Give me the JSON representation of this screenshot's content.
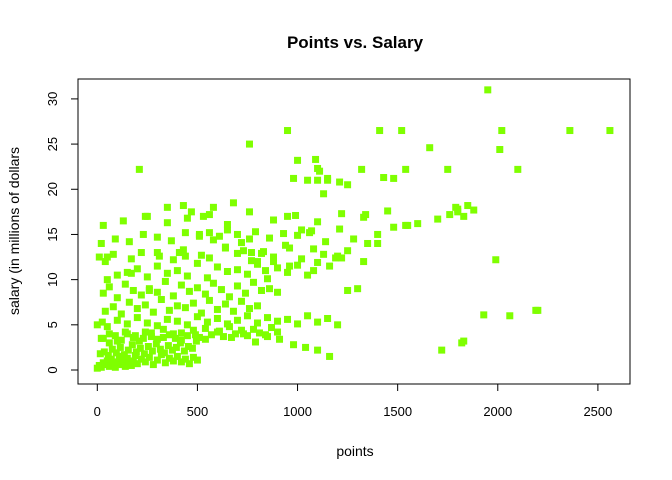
{
  "chart_data": {
    "type": "scatter",
    "title": "Points vs. Salary",
    "xlabel": "points",
    "ylabel": "salary (in millions of dollars",
    "xlim": [
      0,
      2560
    ],
    "ylim": [
      0,
      31
    ],
    "x_ticks": [
      0,
      500,
      1000,
      1500,
      2000,
      2500
    ],
    "y_ticks": [
      0,
      5,
      10,
      15,
      20,
      25,
      30
    ],
    "grid": false,
    "legend": "none",
    "marker": "square",
    "color": "#7FFF00",
    "series": [
      {
        "x": [
          0,
          10,
          20,
          30,
          40,
          50,
          60,
          70,
          80,
          90,
          100,
          110,
          120,
          130,
          140,
          150,
          160,
          170,
          180,
          190,
          200,
          220,
          240,
          260,
          280,
          300,
          320,
          340,
          360,
          380,
          400,
          420,
          440,
          460,
          480,
          500,
          15,
          35,
          55,
          75,
          95,
          115,
          135,
          155,
          175,
          195,
          215,
          235,
          255,
          275,
          295,
          315,
          335,
          355,
          375,
          395,
          415,
          435,
          455,
          475,
          495,
          30,
          60,
          90,
          120,
          150,
          180,
          210,
          240,
          270,
          300,
          330,
          360,
          390,
          420,
          450,
          480,
          510,
          540,
          570,
          600,
          630,
          660,
          690,
          720,
          750,
          780,
          810,
          840,
          870,
          900,
          0,
          25,
          50,
          100,
          150,
          200,
          250,
          300,
          350,
          400,
          450,
          500,
          550,
          600,
          650,
          700,
          750,
          800,
          850,
          900,
          950,
          1000,
          1050,
          1100,
          1150,
          1200,
          40,
          80,
          120,
          160,
          200,
          240,
          280,
          320,
          360,
          400,
          440,
          480,
          520,
          560,
          600,
          640,
          680,
          720,
          760,
          800,
          30,
          60,
          100,
          140,
          180,
          220,
          260,
          300,
          340,
          380,
          420,
          460,
          500,
          540,
          580,
          620,
          660,
          700,
          740,
          780,
          820,
          860,
          900,
          50,
          100,
          150,
          200,
          250,
          300,
          350,
          400,
          450,
          500,
          550,
          600,
          650,
          700,
          750,
          800,
          850,
          900,
          950,
          1000,
          1050,
          1100,
          10,
          40,
          80,
          170,
          220,
          310,
          380,
          430,
          520,
          560,
          640,
          700,
          770,
          830,
          880,
          940,
          1020,
          1080,
          1130,
          1200,
          1250,
          20,
          90,
          160,
          230,
          300,
          370,
          440,
          510,
          580,
          650,
          720,
          790,
          860,
          930,
          1000,
          1070,
          1140,
          1210,
          1280,
          1350,
          1400,
          30,
          130,
          250,
          350,
          450,
          560,
          650,
          760,
          880,
          990,
          1100,
          1220,
          1330,
          1450,
          760,
          950,
          1000,
          1090,
          1100,
          1150,
          1210,
          1250,
          1320,
          1340,
          1410,
          1480,
          1520,
          1540,
          1660,
          1760,
          1790,
          1800,
          1880,
          1950,
          2020,
          2100,
          2200,
          2360,
          2560,
          1330,
          1400,
          1430,
          1550,
          1600,
          1700,
          1750,
          1800,
          1830,
          1850,
          1990,
          2010,
          2060,
          1720,
          1820,
          1830,
          1930,
          2190,
          210,
          240,
          430,
          580,
          700,
          760,
          950,
          980,
          1050,
          1060,
          1100,
          1130,
          1160,
          1220,
          1250,
          1300,
          1480,
          1540,
          50,
          170,
          260,
          300,
          410,
          440,
          510,
          560,
          610,
          680,
          770,
          800,
          840,
          960,
          1020,
          1110,
          1150,
          350,
          470,
          530,
          640,
          730,
          820,
          880,
          960,
          1080,
          1190,
          20,
          60,
          100,
          140,
          190,
          230,
          270,
          330,
          380,
          420,
          490,
          540,
          610,
          670,
          730,
          790,
          850,
          910,
          980,
          1040,
          1100,
          1160
        ],
        "y": [
          0.2,
          0.5,
          0.3,
          0.8,
          0.6,
          1.0,
          0.4,
          1.2,
          0.7,
          0.3,
          0.9,
          1.5,
          0.6,
          1.1,
          0.4,
          1.3,
          0.8,
          0.5,
          1.0,
          1.6,
          0.7,
          1.2,
          0.9,
          1.4,
          0.6,
          1.1,
          1.7,
          0.8,
          1.3,
          1.0,
          1.5,
          0.9,
          1.2,
          0.7,
          1.4,
          1.1,
          1.8,
          2.0,
          1.6,
          2.3,
          1.9,
          2.5,
          1.7,
          2.2,
          2.8,
          2.0,
          2.4,
          1.8,
          2.6,
          2.1,
          2.9,
          2.3,
          1.9,
          2.7,
          2.2,
          2.5,
          3.0,
          2.1,
          2.6,
          2.4,
          3.2,
          3.5,
          3.0,
          3.8,
          3.3,
          4.0,
          3.6,
          3.2,
          4.2,
          3.7,
          3.4,
          4.5,
          3.9,
          3.5,
          4.1,
          3.8,
          4.4,
          3.6,
          4.6,
          3.9,
          4.2,
          3.7,
          4.8,
          4.0,
          4.4,
          3.8,
          4.5,
          4.1,
          3.9,
          4.7,
          4.2,
          5.0,
          5.3,
          4.8,
          5.5,
          5.1,
          5.8,
          5.2,
          4.9,
          5.6,
          5.4,
          5.0,
          5.9,
          5.3,
          5.7,
          5.1,
          5.5,
          6.0,
          5.2,
          5.8,
          5.4,
          5.6,
          5.1,
          6.0,
          5.3,
          5.7,
          5.0,
          6.5,
          7.0,
          6.2,
          7.5,
          6.8,
          7.2,
          6.4,
          7.8,
          6.6,
          7.1,
          6.9,
          7.4,
          6.3,
          7.7,
          6.7,
          7.3,
          6.5,
          7.6,
          6.8,
          7.1,
          8.5,
          9.2,
          8.0,
          9.5,
          8.8,
          8.3,
          9.0,
          8.6,
          9.8,
          8.2,
          9.4,
          8.7,
          9.1,
          8.4,
          9.6,
          8.9,
          8.1,
          9.3,
          8.5,
          9.7,
          8.8,
          9.0,
          8.6,
          10.0,
          10.5,
          10.8,
          11.2,
          10.3,
          11.5,
          10.7,
          11.0,
          10.4,
          11.8,
          10.2,
          11.4,
          10.9,
          11.1,
          10.6,
          11.7,
          10.1,
          11.3,
          10.8,
          11.6,
          10.5,
          11.9,
          12.5,
          12.0,
          12.8,
          12.3,
          13.0,
          12.6,
          12.2,
          13.3,
          12.7,
          12.4,
          13.6,
          12.9,
          12.1,
          13.1,
          12.5,
          13.8,
          12.3,
          13.4,
          12.8,
          12.6,
          13.2,
          14.0,
          14.5,
          14.2,
          15.0,
          14.7,
          14.3,
          15.2,
          14.8,
          14.4,
          15.5,
          14.1,
          15.3,
          14.6,
          15.1,
          14.9,
          15.4,
          14.2,
          15.6,
          14.5,
          14.0,
          15.0,
          16.0,
          16.5,
          17.0,
          16.3,
          16.8,
          17.2,
          16.1,
          17.5,
          16.6,
          17.1,
          16.4,
          17.3,
          16.9,
          17.6,
          25.0,
          26.5,
          23.2,
          23.3,
          22.3,
          21.2,
          20.8,
          20.5,
          22.2,
          17.2,
          26.5,
          21.2,
          26.5,
          22.2,
          24.6,
          17.2,
          18.0,
          17.8,
          17.7,
          31.0,
          26.5,
          22.2,
          6.6,
          26.5,
          26.5,
          12.0,
          14.0,
          21.3,
          16.0,
          16.2,
          16.7,
          22.2,
          17.5,
          17.0,
          18.2,
          12.2,
          24.4,
          6.0,
          2.2,
          3.0,
          3.2,
          6.1,
          6.6,
          22.2,
          17.0,
          18.2,
          18.0,
          15.0,
          14.5,
          17.0,
          21.2,
          21.0,
          15.2,
          21.0,
          19.5,
          11.5,
          12.4,
          8.8,
          9.0,
          15.8,
          16.0,
          12.5,
          10.7,
          8.8,
          13.0,
          13.0,
          12.6,
          15.0,
          15.2,
          14.8,
          18.5,
          13.0,
          12.0,
          11.0,
          13.5,
          15.5,
          22.0,
          21.0,
          18.0,
          17.5,
          17.0,
          13.5,
          13.2,
          12.9,
          12.0,
          11.5,
          11.0,
          12.4,
          3.5,
          4.0,
          3.2,
          4.2,
          3.8,
          3.5,
          4.1,
          3.6,
          4.0,
          3.3,
          3.9,
          3.4,
          4.3,
          3.6,
          4.0,
          3.1,
          3.7,
          3.4,
          2.8,
          2.5,
          2.2,
          1.5
        ]
      }
    ]
  }
}
